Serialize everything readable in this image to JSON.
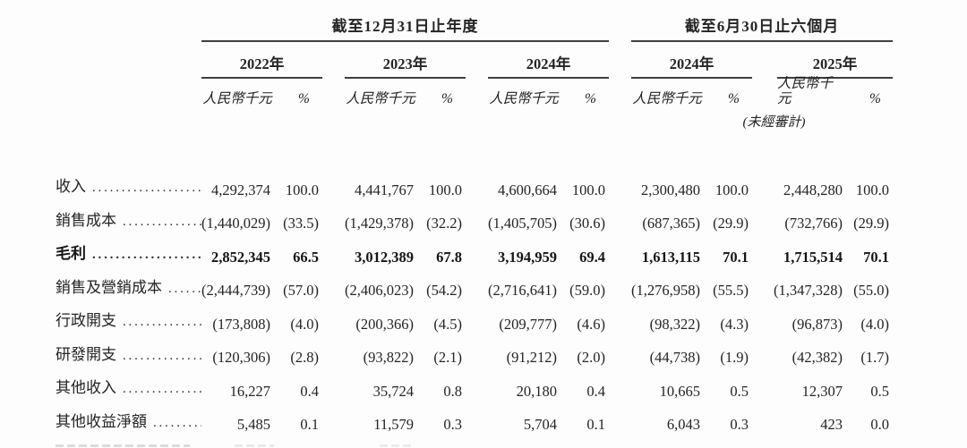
{
  "table": {
    "groups": [
      {
        "title": "截至12月31日止年度",
        "years": [
          "2022年",
          "2023年",
          "2024年"
        ]
      },
      {
        "title": "截至6月30日止六個月",
        "years": [
          "2024年",
          "2025年"
        ]
      }
    ],
    "unit_label": "人民幣千元",
    "pct_label": "%",
    "unaudited_note": "(未經審計)",
    "rows": [
      {
        "label": "收入",
        "bold": false,
        "values": [
          "4,292,374",
          "100.0",
          "4,441,767",
          "100.0",
          "4,600,664",
          "100.0",
          "2,300,480",
          "100.0",
          "2,448,280",
          "100.0"
        ]
      },
      {
        "label": "銷售成本",
        "bold": false,
        "values": [
          "(1,440,029)",
          "(33.5)",
          "(1,429,378)",
          "(32.2)",
          "(1,405,705)",
          "(30.6)",
          "(687,365)",
          "(29.9)",
          "(732,766)",
          "(29.9)"
        ]
      },
      {
        "label": "毛利",
        "bold": true,
        "values": [
          "2,852,345",
          "66.5",
          "3,012,389",
          "67.8",
          "3,194,959",
          "69.4",
          "1,613,115",
          "70.1",
          "1,715,514",
          "70.1"
        ]
      },
      {
        "label": "銷售及營銷成本",
        "bold": false,
        "values": [
          "(2,444,739)",
          "(57.0)",
          "(2,406,023)",
          "(54.2)",
          "(2,716,641)",
          "(59.0)",
          "(1,276,958)",
          "(55.5)",
          "(1,347,328)",
          "(55.0)"
        ]
      },
      {
        "label": "行政開支",
        "bold": false,
        "values": [
          "(173,808)",
          "(4.0)",
          "(200,366)",
          "(4.5)",
          "(209,777)",
          "(4.6)",
          "(98,322)",
          "(4.3)",
          "(96,873)",
          "(4.0)"
        ]
      },
      {
        "label": "研發開支",
        "bold": false,
        "values": [
          "(120,306)",
          "(2.8)",
          "(93,822)",
          "(2.1)",
          "(91,212)",
          "(2.0)",
          "(44,738)",
          "(1.9)",
          "(42,382)",
          "(1.7)"
        ]
      },
      {
        "label": "其他收入",
        "bold": false,
        "values": [
          "16,227",
          "0.4",
          "35,724",
          "0.8",
          "20,180",
          "0.4",
          "10,665",
          "0.5",
          "12,307",
          "0.5"
        ]
      },
      {
        "label": "其他收益淨額",
        "bold": false,
        "values": [
          "5,485",
          "0.1",
          "11,579",
          "0.3",
          "5,704",
          "0.1",
          "6,043",
          "0.3",
          "423",
          "0.0"
        ]
      }
    ]
  }
}
